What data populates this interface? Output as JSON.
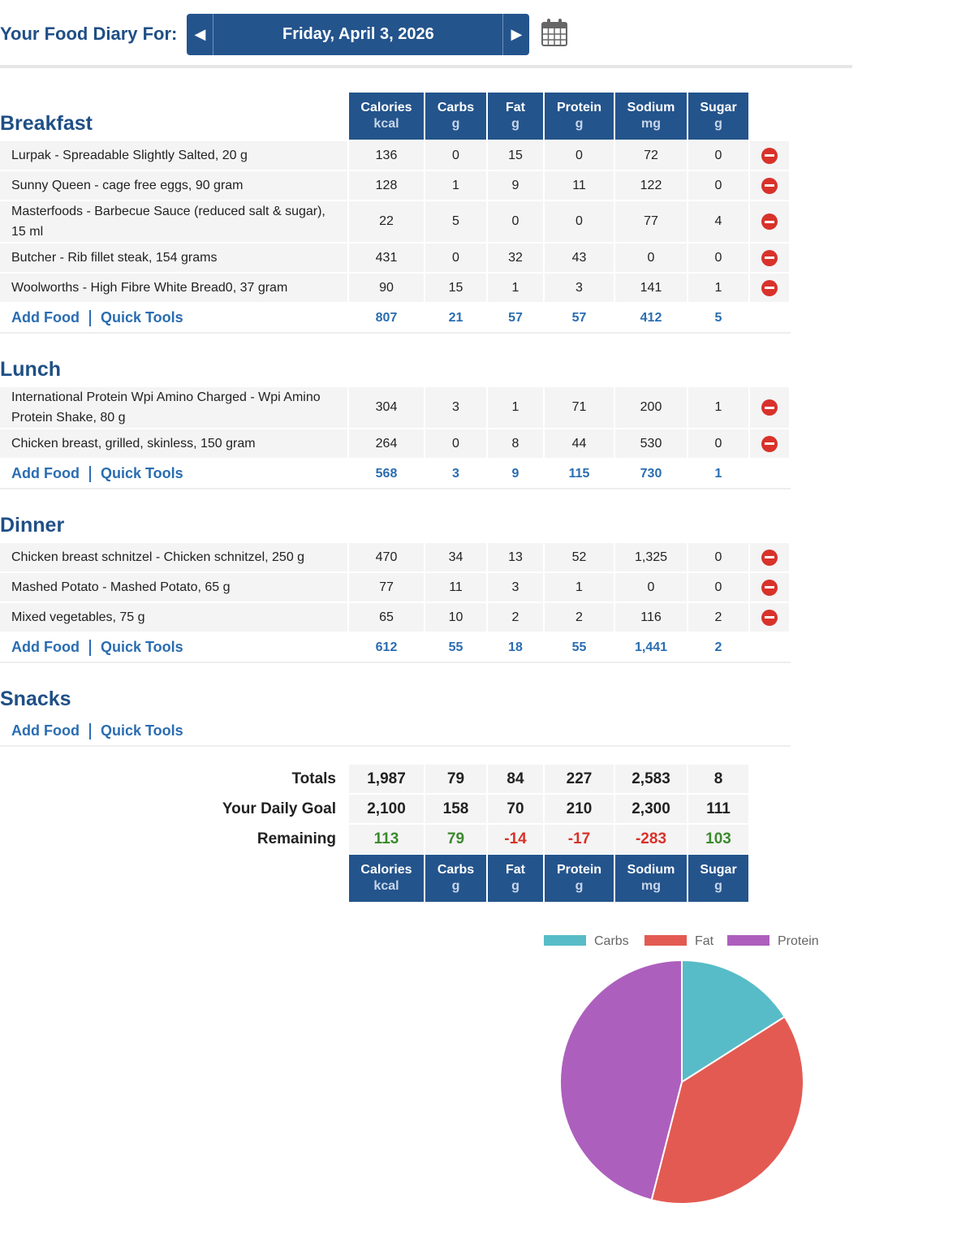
{
  "header": {
    "title": "Your Food Diary For:",
    "date": "Friday, April 3, 2026"
  },
  "columns": [
    {
      "name": "Calories",
      "unit": "kcal"
    },
    {
      "name": "Carbs",
      "unit": "g"
    },
    {
      "name": "Fat",
      "unit": "g"
    },
    {
      "name": "Protein",
      "unit": "g"
    },
    {
      "name": "Sodium",
      "unit": "mg"
    },
    {
      "name": "Sugar",
      "unit": "g"
    }
  ],
  "links": {
    "add_food": "Add Food",
    "quick_tools": "Quick Tools"
  },
  "meals": [
    {
      "title": "Breakfast",
      "items": [
        {
          "name": "Lurpak - Spreadable Slightly Salted, 20 g",
          "values": [
            "136",
            "0",
            "15",
            "0",
            "72",
            "0"
          ]
        },
        {
          "name": "Sunny Queen - cage free eggs, 90 gram",
          "values": [
            "128",
            "1",
            "9",
            "11",
            "122",
            "0"
          ]
        },
        {
          "name": "Masterfoods - Barbecue Sauce (reduced salt & sugar), 15 ml",
          "values": [
            "22",
            "5",
            "0",
            "0",
            "77",
            "4"
          ]
        },
        {
          "name": "Butcher - Rib fillet steak, 154 grams",
          "values": [
            "431",
            "0",
            "32",
            "43",
            "0",
            "0"
          ]
        },
        {
          "name": "Woolworths - High Fibre White Bread0, 37 gram",
          "values": [
            "90",
            "15",
            "1",
            "3",
            "141",
            "1"
          ]
        }
      ],
      "totals": [
        "807",
        "21",
        "57",
        "57",
        "412",
        "5"
      ]
    },
    {
      "title": "Lunch",
      "items": [
        {
          "name": "International Protein Wpi Amino Charged - Wpi Amino Protein Shake, 80 g",
          "values": [
            "304",
            "3",
            "1",
            "71",
            "200",
            "1"
          ]
        },
        {
          "name": "Chicken breast, grilled, skinless, 150 gram",
          "values": [
            "264",
            "0",
            "8",
            "44",
            "530",
            "0"
          ]
        }
      ],
      "totals": [
        "568",
        "3",
        "9",
        "115",
        "730",
        "1"
      ]
    },
    {
      "title": "Dinner",
      "items": [
        {
          "name": "Chicken breast  schnitzel - Chicken schnitzel, 250 g",
          "values": [
            "470",
            "34",
            "13",
            "52",
            "1,325",
            "0"
          ]
        },
        {
          "name": "Mashed Potato - Mashed Potato, 65 g",
          "values": [
            "77",
            "11",
            "3",
            "1",
            "0",
            "0"
          ]
        },
        {
          "name": "Mixed vegetables, 75 g",
          "values": [
            "65",
            "10",
            "2",
            "2",
            "116",
            "2"
          ]
        }
      ],
      "totals": [
        "612",
        "55",
        "18",
        "55",
        "1,441",
        "2"
      ]
    },
    {
      "title": "Snacks",
      "items": [],
      "totals": null
    }
  ],
  "summary": [
    {
      "label": "Totals",
      "values": [
        "1,987",
        "79",
        "84",
        "227",
        "2,583",
        "8"
      ]
    },
    {
      "label": "Your Daily Goal",
      "values": [
        "2,100",
        "158",
        "70",
        "210",
        "2,300",
        "111"
      ]
    },
    {
      "label": "Remaining",
      "values": [
        "113",
        "79",
        "-14",
        "-17",
        "-283",
        "103"
      ]
    }
  ],
  "colors": {
    "brand": "#24548c",
    "link": "#2a6db1",
    "positive": "#3c8a2e",
    "negative": "#d8322b"
  },
  "chart_data": {
    "type": "pie",
    "categories": [
      "Carbs",
      "Fat",
      "Protein"
    ],
    "values": [
      16,
      38,
      46
    ],
    "unit": "% of calories",
    "colors": [
      "#57bcc7",
      "#e35a52",
      "#ad5fbd"
    ],
    "legend": "top"
  }
}
